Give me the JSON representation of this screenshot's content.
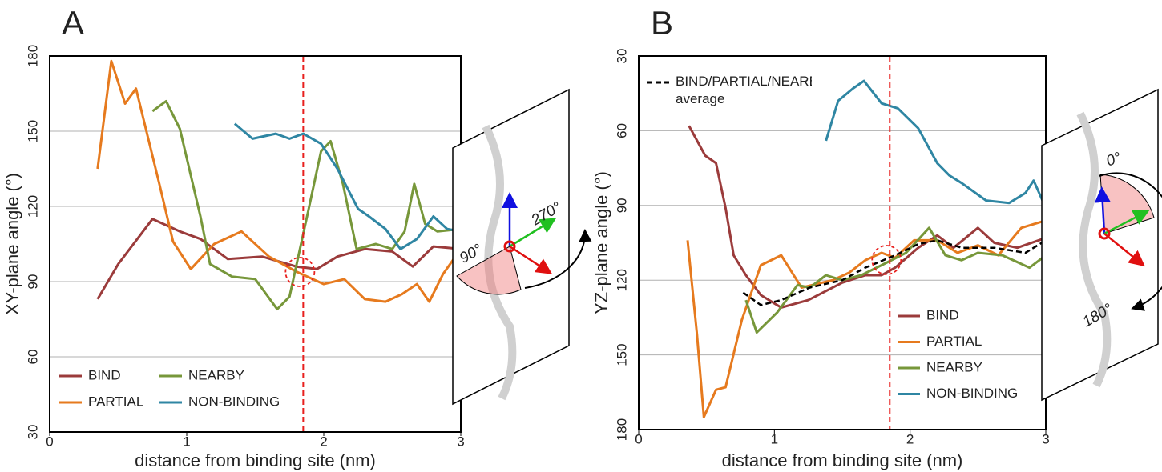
{
  "chart_data": [
    {
      "type": "line",
      "panel_label": "A",
      "xlabel": "distance from binding site (nm)",
      "ylabel": "XY-plane angle (°)",
      "xlim": [
        0,
        3
      ],
      "xticks": [
        0,
        1,
        2,
        3
      ],
      "ylim": [
        30,
        180
      ],
      "yticks": [
        30,
        60,
        90,
        120,
        150,
        180
      ],
      "grid": true,
      "vline": 1.85,
      "inset_labels": [
        "90°",
        "270°"
      ],
      "legend": "lower left",
      "series": [
        {
          "name": "BIND",
          "color": "#9b3b3b",
          "x": [
            0.35,
            0.5,
            0.75,
            0.95,
            1.1,
            1.3,
            1.55,
            1.8,
            1.95,
            2.1,
            2.3,
            2.5,
            2.65,
            2.8,
            3.0
          ],
          "values": [
            83,
            97,
            115,
            110,
            107,
            99,
            100,
            96,
            95,
            100,
            103,
            102,
            96,
            104,
            103
          ]
        },
        {
          "name": "PARTIAL",
          "color": "#e67a1e",
          "x": [
            0.35,
            0.45,
            0.55,
            0.63,
            0.8,
            0.9,
            1.03,
            1.2,
            1.4,
            1.6,
            1.8,
            2.0,
            2.15,
            2.3,
            2.45,
            2.57,
            2.68,
            2.77,
            2.87,
            3.0
          ],
          "values": [
            135,
            178,
            161,
            167,
            129,
            106,
            95,
            105,
            110,
            100,
            94,
            89,
            91,
            83,
            82,
            85,
            89,
            82,
            93,
            103
          ]
        },
        {
          "name": "NEARBY",
          "color": "#77973a",
          "x": [
            0.75,
            0.85,
            0.95,
            1.1,
            1.17,
            1.33,
            1.5,
            1.66,
            1.75,
            1.89,
            1.98,
            2.05,
            2.14,
            2.24,
            2.38,
            2.5,
            2.59,
            2.66,
            2.74,
            2.83,
            3.0
          ],
          "values": [
            158,
            162,
            151,
            116,
            97,
            92,
            91,
            79,
            84,
            119,
            142,
            146,
            129,
            103,
            105,
            103,
            110,
            129,
            113,
            110,
            111
          ]
        },
        {
          "name": "NON-BINDING",
          "color": "#2f86a3",
          "x": [
            1.35,
            1.48,
            1.65,
            1.75,
            1.85,
            1.98,
            2.1,
            2.25,
            2.33,
            2.45,
            2.56,
            2.68,
            2.8,
            2.9,
            3.0
          ],
          "values": [
            153,
            147,
            149,
            147,
            149,
            145,
            135,
            119,
            116,
            111,
            103,
            107,
            116,
            111,
            110
          ]
        }
      ]
    },
    {
      "type": "line",
      "panel_label": "B",
      "xlabel": "distance from binding site (nm)",
      "ylabel": "YZ-plane angle (°)",
      "xlim": [
        0,
        3
      ],
      "xticks": [
        0,
        1,
        2,
        3
      ],
      "ylim": [
        180,
        30
      ],
      "yticks": [
        30,
        60,
        90,
        120,
        150,
        180
      ],
      "grid": true,
      "vline": 1.85,
      "inset_labels": [
        "0°",
        "180°"
      ],
      "legend": "lower right",
      "series": [
        {
          "name": "BIND",
          "color": "#9b3b3b",
          "x": [
            0.37,
            0.49,
            0.57,
            0.64,
            0.7,
            0.79,
            0.9,
            1.05,
            1.25,
            1.5,
            1.67,
            1.79,
            1.89,
            2.06,
            2.2,
            2.32,
            2.5,
            2.62,
            2.79,
            3.0
          ],
          "values": [
            58,
            70,
            73,
            91,
            110,
            118,
            126,
            131,
            128,
            121,
            118,
            118,
            115,
            107,
            102,
            107,
            99,
            105,
            107,
            103
          ]
        },
        {
          "name": "PARTIAL",
          "color": "#e67a1e",
          "x": [
            0.36,
            0.43,
            0.48,
            0.57,
            0.64,
            0.76,
            0.9,
            1.05,
            1.2,
            1.43,
            1.55,
            1.67,
            1.79,
            1.89,
            2.03,
            2.2,
            2.35,
            2.5,
            2.65,
            2.82,
            3.0
          ],
          "values": [
            104,
            142,
            175,
            164,
            163,
            136,
            114,
            110,
            123,
            120,
            117,
            112,
            109,
            111,
            104,
            104,
            109,
            106,
            110,
            99,
            96
          ]
        },
        {
          "name": "NEARBY",
          "color": "#77973a",
          "x": [
            0.79,
            0.87,
            1.02,
            1.17,
            1.26,
            1.38,
            1.5,
            1.64,
            1.79,
            1.97,
            2.14,
            2.26,
            2.38,
            2.5,
            2.68,
            2.88,
            3.0
          ],
          "values": [
            128,
            141,
            133,
            122,
            123,
            118,
            120,
            118,
            114,
            109,
            99,
            110,
            112,
            109,
            110,
            115,
            110
          ]
        },
        {
          "name": "NON-BINDING",
          "color": "#2f86a3",
          "x": [
            1.38,
            1.47,
            1.58,
            1.66,
            1.79,
            1.91,
            2.06,
            2.2,
            2.29,
            2.38,
            2.56,
            2.73,
            2.85,
            2.91,
            3.0
          ],
          "values": [
            64,
            48,
            43,
            40,
            49,
            51,
            59,
            73,
            78,
            81,
            88,
            89,
            85,
            80,
            91
          ]
        },
        {
          "name": "BIND/PARTIAL/NEARBY average",
          "color": "#000000",
          "dashed": true,
          "x": [
            0.77,
            0.9,
            1.05,
            1.26,
            1.5,
            1.67,
            1.89,
            2.06,
            2.2,
            2.38,
            2.62,
            2.85,
            3.0
          ],
          "values": [
            125,
            130,
            128,
            123,
            120,
            115,
            110,
            105.5,
            104,
            107,
            107,
            109,
            104
          ]
        }
      ]
    }
  ]
}
